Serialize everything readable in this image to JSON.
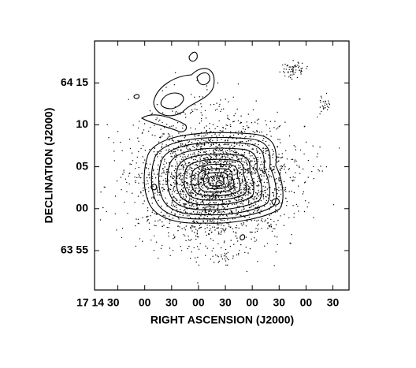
{
  "chart_data": {
    "type": "contour",
    "x_label": "RIGHT ASCENSION (J2000)",
    "y_label": "DECLINATION (J2000)",
    "xlim": [
      56,
      -228
    ],
    "ylim": [
      -9.7,
      20
    ],
    "xticks": [
      {
        "value": 30,
        "label": "17 14 30"
      },
      {
        "value": 0,
        "label": "00"
      },
      {
        "value": -30,
        "label": "30"
      },
      {
        "value": -60,
        "label": "00"
      },
      {
        "value": -90,
        "label": "30"
      },
      {
        "value": -120,
        "label": "00"
      },
      {
        "value": -150,
        "label": "30"
      },
      {
        "value": -180,
        "label": "00"
      },
      {
        "value": -210,
        "label": "30"
      }
    ],
    "yticks": [
      {
        "value": -5,
        "label": "63 55"
      },
      {
        "value": 0,
        "label": "00"
      },
      {
        "value": 5,
        "label": "05"
      },
      {
        "value": 10,
        "label": "10"
      },
      {
        "value": 15,
        "label": "64 15"
      }
    ]
  }
}
